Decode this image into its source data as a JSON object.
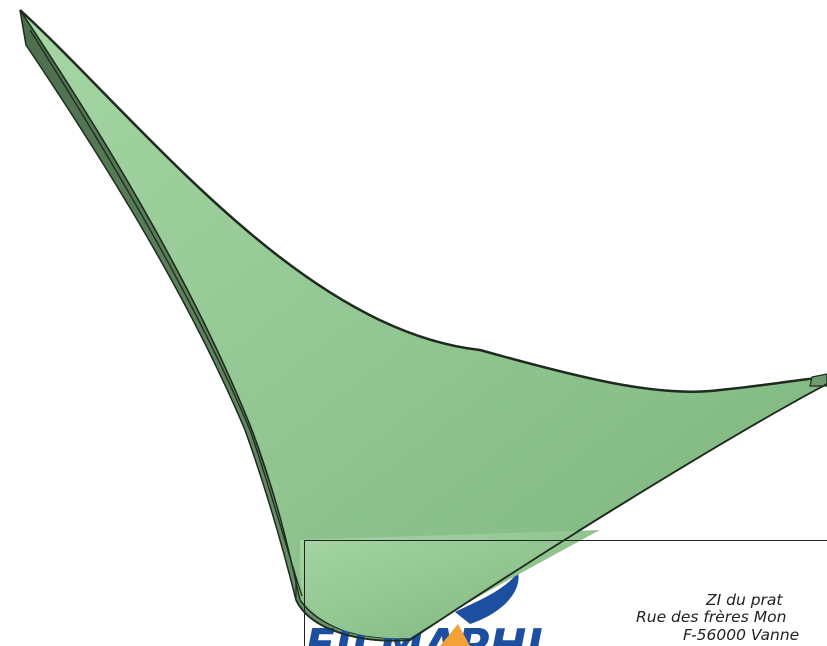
{
  "viewport": {
    "model_color": "#8fc48f",
    "model_edge_color": "#1e2b1e",
    "background_color": "#ffffff"
  },
  "logo": {
    "text": "FILMAPHI",
    "primary_color": "#1d4fa0",
    "secondary_color": "#f3a23a"
  },
  "title_block": {
    "address_lines": [
      "ZI du prat",
      "Rue des frères Mon",
      "F-56000 Vanne"
    ]
  }
}
